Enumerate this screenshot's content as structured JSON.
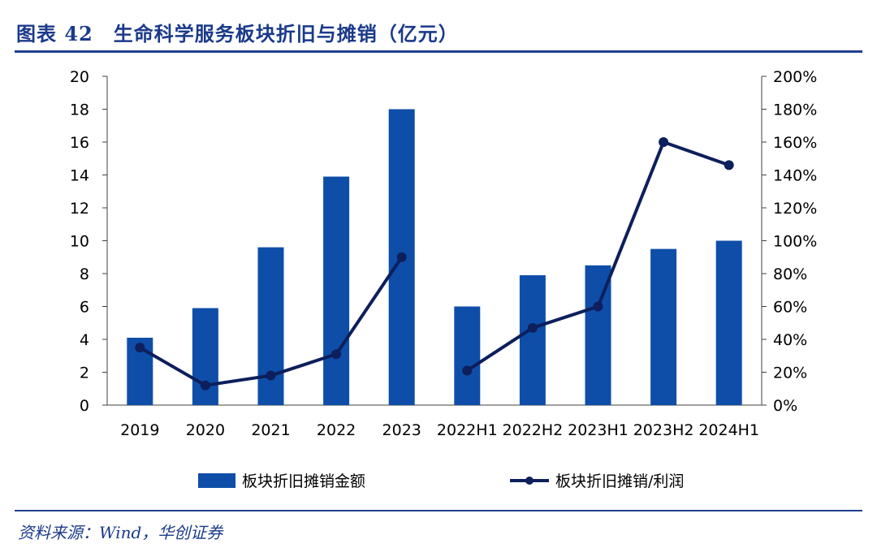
{
  "header": {
    "title": "图表 42　生命科学服务板块折旧与摊销（亿元）"
  },
  "footer": {
    "source": "资料来源：Wind，华创证券"
  },
  "colors": {
    "bar": "#0e4ea8",
    "line": "#0d1f5c",
    "rule": "#1f3f8f",
    "axis": "#404040",
    "text": "#000000"
  },
  "chart_data": {
    "type": "bar",
    "categories": [
      "2019",
      "2020",
      "2021",
      "2022",
      "2023",
      "2022H1",
      "2022H2",
      "2023H1",
      "2023H2",
      "2024H1"
    ],
    "ylim": [
      0,
      20
    ],
    "ylim_right": [
      0,
      2.0
    ],
    "y_ticks": [
      "0",
      "2",
      "4",
      "6",
      "8",
      "10",
      "12",
      "14",
      "16",
      "18",
      "20"
    ],
    "y_right_ticks": [
      "0%",
      "20%",
      "40%",
      "60%",
      "80%",
      "100%",
      "120%",
      "140%",
      "160%",
      "180%",
      "200%"
    ],
    "grid": false,
    "legend_position": "bottom",
    "series": [
      {
        "name": "板块折旧摊销金额",
        "kind": "bar",
        "axis": "left",
        "values": [
          4.1,
          5.9,
          9.6,
          13.9,
          18.0,
          6.0,
          7.9,
          8.5,
          9.5,
          10.0
        ]
      },
      {
        "name": "板块折旧摊销/利润",
        "kind": "line",
        "axis": "right",
        "segments": [
          [
            0,
            4
          ],
          [
            5,
            9
          ]
        ],
        "values": [
          0.35,
          0.12,
          0.18,
          0.31,
          0.9,
          0.21,
          0.47,
          0.6,
          1.6,
          1.46
        ]
      }
    ]
  }
}
